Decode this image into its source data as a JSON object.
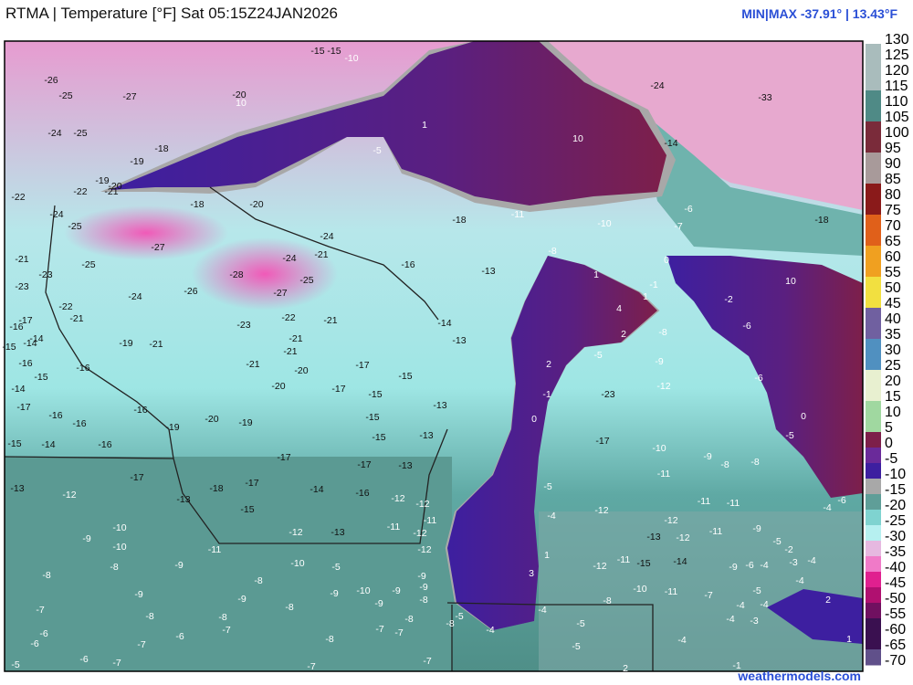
{
  "header": {
    "title": "RTMA | Temperature [°F]  Sat 05:15Z24JAN2026",
    "minmax": "MIN|MAX -37.91° | 13.43°F"
  },
  "footer": "weathermodels.com",
  "colorbar": {
    "ticks": [
      130,
      125,
      120,
      115,
      110,
      105,
      100,
      95,
      90,
      85,
      80,
      75,
      70,
      65,
      60,
      55,
      50,
      45,
      40,
      35,
      30,
      25,
      20,
      15,
      10,
      5,
      0,
      -5,
      -10,
      -15,
      -20,
      -25,
      -30,
      -35,
      -40,
      -45,
      -50,
      -55,
      -60,
      -65,
      -70
    ]
  },
  "map": {
    "labels": [
      -15,
      -15,
      -10,
      -26,
      -25,
      -27,
      -20,
      10,
      -24,
      -25,
      -18,
      -19,
      -19,
      -22,
      -21,
      -20,
      -22,
      -18,
      -20,
      -24,
      -25,
      -27,
      -24,
      -21,
      -24,
      -28,
      -25,
      -21,
      -25,
      -23,
      -23,
      -24,
      -26,
      -27,
      -22,
      -21,
      -22,
      -21,
      -23,
      -17,
      -16,
      -14,
      -14,
      -15,
      -19,
      -21,
      -21,
      -21,
      -16,
      -16,
      -15,
      -21,
      -20,
      -17,
      -15,
      -14,
      -17,
      -20,
      -17,
      -15,
      -16,
      -16,
      -16,
      -19,
      -20,
      -19,
      -15,
      -15,
      -13,
      -13,
      -15,
      -14,
      -16,
      -17,
      -17,
      -13,
      -17,
      -18,
      -17,
      -14,
      -16,
      -12,
      -13,
      -13,
      -12,
      -12,
      -15,
      -11,
      -10,
      -12,
      -13,
      -11,
      -12,
      -9,
      -10,
      -11,
      -12,
      -10,
      -9,
      -8,
      -5,
      -8,
      -8,
      -9,
      -9,
      -9,
      -10,
      -9,
      -9,
      -8,
      -9,
      -8,
      -9,
      -7,
      -8,
      -8,
      -8,
      -7,
      -8,
      -5,
      -6,
      -6,
      -7,
      -7,
      -8,
      -7,
      -6,
      -4,
      -6,
      -7,
      -7,
      -7,
      -5,
      1,
      -5,
      10,
      -24,
      -33,
      -14,
      -11,
      -18,
      -10,
      -7,
      -6,
      -18,
      -8,
      -16,
      -13,
      1,
      0,
      -1,
      1,
      10,
      -2,
      4,
      -8,
      -6,
      2,
      -5,
      -14,
      -13,
      -9,
      2,
      -1,
      -12,
      -6,
      -23,
      0,
      0,
      -5,
      -17,
      -10,
      -9,
      -8,
      -8,
      -5,
      -11,
      -12,
      -11,
      -11,
      -4,
      -6,
      -4,
      -12,
      -13,
      -12,
      -11,
      -9,
      -5,
      -2,
      -4,
      1,
      -11,
      -15,
      -14,
      -12,
      -9,
      -6,
      -4,
      -3,
      3,
      -4,
      -10,
      -11,
      -7,
      -5,
      2,
      -8,
      -4,
      -4,
      -4,
      -5,
      -4,
      -3,
      -4,
      -5,
      1,
      -1,
      2
    ]
  }
}
